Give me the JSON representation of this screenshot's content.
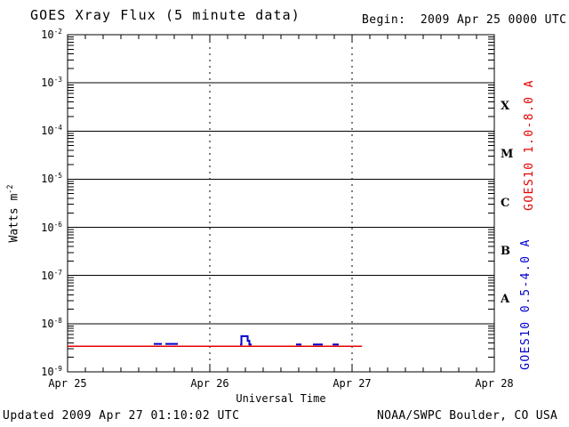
{
  "title": "GOES Xray Flux (5 minute data)",
  "begin_label": "Begin:  2009 Apr 25 0000 UTC",
  "footer": {
    "updated": "Updated 2009 Apr 27 01:10:02 UTC",
    "source": "NOAA/SWPC Boulder, CO USA"
  },
  "chart_data": {
    "type": "line",
    "title": "GOES Xray Flux (5 minute data)",
    "xlabel": "Universal Time",
    "ylabel_base": "Watts m",
    "ylabel_exp": "-2",
    "x_range_days": [
      0,
      3
    ],
    "x_ticks": [
      {
        "day": 0,
        "label": "Apr 25"
      },
      {
        "day": 1,
        "label": "Apr 26"
      },
      {
        "day": 2,
        "label": "Apr 27"
      },
      {
        "day": 3,
        "label": "Apr 28"
      }
    ],
    "minor_tick_hours": 3,
    "y_log_range": [
      -9,
      -2
    ],
    "y_tick_exponents": [
      -2,
      -3,
      -4,
      -5,
      -6,
      -7,
      -8,
      -9
    ],
    "gridlines": {
      "horizontal_at_exponents": [
        -3,
        -4,
        -5,
        -6,
        -7,
        -8
      ],
      "vertical_dotted_at_days": [
        1,
        2
      ]
    },
    "flux_classes": [
      {
        "label": "X",
        "log_center": -3.5
      },
      {
        "label": "M",
        "log_center": -4.5
      },
      {
        "label": "C",
        "log_center": -5.5
      },
      {
        "label": "B",
        "log_center": -6.5
      },
      {
        "label": "A",
        "log_center": -7.5
      }
    ],
    "series": [
      {
        "name": "GOES10 1.0-8.0 A",
        "color": "#e80000",
        "stroke_width": 1.5,
        "segments": [
          [
            [
              0.0,
              3.4e-09
            ],
            [
              2.07,
              3.4e-09
            ]
          ]
        ]
      },
      {
        "name": "GOES10 0.5-4.0 A",
        "color": "#0000cc",
        "stroke_width": 2,
        "segments": [
          [
            [
              0.606,
              3.8e-09
            ],
            [
              0.663,
              3.8e-09
            ]
          ],
          [
            [
              0.688,
              3.8e-09
            ],
            [
              0.775,
              3.8e-09
            ]
          ],
          [
            [
              1.213,
              3.7e-09
            ],
            [
              1.222,
              3.7e-09
            ],
            [
              1.222,
              5.5e-09
            ],
            [
              1.266,
              5.5e-09
            ],
            [
              1.266,
              4.4e-09
            ],
            [
              1.278,
              4.4e-09
            ],
            [
              1.278,
              3.7e-09
            ],
            [
              1.294,
              3.7e-09
            ]
          ],
          [
            [
              1.606,
              3.7e-09
            ],
            [
              1.644,
              3.7e-09
            ]
          ],
          [
            [
              1.725,
              3.7e-09
            ],
            [
              1.794,
              3.7e-09
            ]
          ],
          [
            [
              1.863,
              3.7e-09
            ],
            [
              1.906,
              3.7e-09
            ]
          ]
        ]
      }
    ]
  }
}
